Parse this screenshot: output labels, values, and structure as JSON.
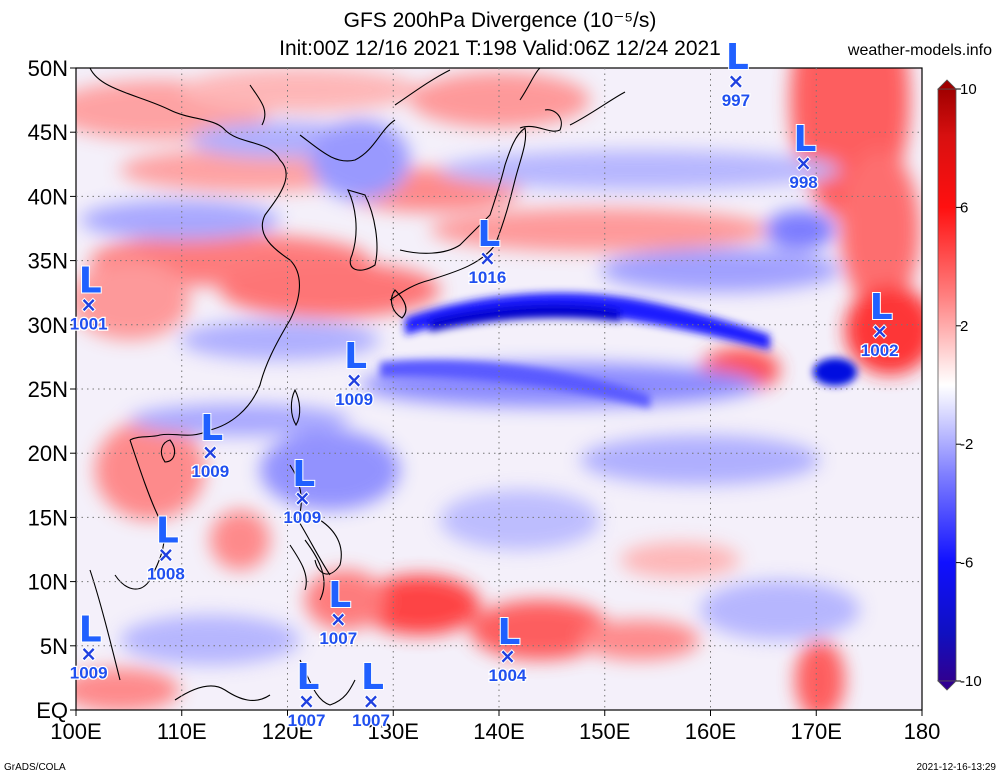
{
  "header": {
    "title": "GFS 200hPa Divergence (10⁻⁵/s)",
    "subtitle": "Init:00Z 12/16 2021 T:198 Valid:06Z 12/24 2021",
    "site": "weather-models.info"
  },
  "footer": {
    "left": "GrADS/COLA",
    "right": "2021-12-16-13:29"
  },
  "map": {
    "lon_range": [
      100,
      180
    ],
    "lat_range": [
      0,
      50
    ],
    "lon_ticks": [
      {
        "value": 100,
        "label": "100E"
      },
      {
        "value": 110,
        "label": "110E"
      },
      {
        "value": 120,
        "label": "120E"
      },
      {
        "value": 130,
        "label": "130E"
      },
      {
        "value": 140,
        "label": "140E"
      },
      {
        "value": 150,
        "label": "150E"
      },
      {
        "value": 160,
        "label": "160E"
      },
      {
        "value": 170,
        "label": "170E"
      },
      {
        "value": 180,
        "label": "180"
      }
    ],
    "lat_ticks": [
      {
        "value": 0,
        "label": "EQ"
      },
      {
        "value": 5,
        "label": "5N"
      },
      {
        "value": 10,
        "label": "10N"
      },
      {
        "value": 15,
        "label": "15N"
      },
      {
        "value": 20,
        "label": "20N"
      },
      {
        "value": 25,
        "label": "25N"
      },
      {
        "value": 30,
        "label": "30N"
      },
      {
        "value": 35,
        "label": "35N"
      },
      {
        "value": 40,
        "label": "40N"
      },
      {
        "value": 45,
        "label": "45N"
      },
      {
        "value": 50,
        "label": "50N"
      }
    ],
    "grid": true,
    "colors": {
      "positive": "#ff0000",
      "negative": "#0000ff",
      "neutral": "#ffffff"
    },
    "lows": [
      {
        "lon": 162.4,
        "lat": 49,
        "pressure": "997"
      },
      {
        "lon": 168.8,
        "lat": 42.6,
        "pressure": "998"
      },
      {
        "lon": 138.9,
        "lat": 35.2,
        "pressure": "1016"
      },
      {
        "lon": 101.2,
        "lat": 31.6,
        "pressure": "1001"
      },
      {
        "lon": 176.0,
        "lat": 29.5,
        "pressure": "1002"
      },
      {
        "lon": 126.3,
        "lat": 25.7,
        "pressure": "1009"
      },
      {
        "lon": 112.7,
        "lat": 20.1,
        "pressure": "1009"
      },
      {
        "lon": 121.4,
        "lat": 16.5,
        "pressure": "1009"
      },
      {
        "lon": 108.5,
        "lat": 12.1,
        "pressure": "1008"
      },
      {
        "lon": 124.8,
        "lat": 7.1,
        "pressure": "1007"
      },
      {
        "lon": 101.2,
        "lat": 4.4,
        "pressure": "1009"
      },
      {
        "lon": 140.8,
        "lat": 4.2,
        "pressure": "1004"
      },
      {
        "lon": 121.8,
        "lat": 0.7,
        "pressure": "1007"
      },
      {
        "lon": 127.9,
        "lat": 0.7,
        "pressure": "1007"
      }
    ]
  },
  "colorbar": {
    "min": -10,
    "max": 10,
    "ticks": [
      {
        "value": 10,
        "label": "10"
      },
      {
        "value": 6,
        "label": "6"
      },
      {
        "value": 2,
        "label": "2"
      },
      {
        "value": -2,
        "label": "-2"
      },
      {
        "value": -6,
        "label": "-6"
      },
      {
        "value": -10,
        "label": "-10"
      }
    ]
  }
}
